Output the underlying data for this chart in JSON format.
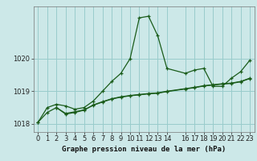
{
  "xlabel": "Graphe pression niveau de la mer (hPa)",
  "bg_color": "#cce8e8",
  "grid_color": "#99cccc",
  "line_color": "#1a5c1a",
  "line1_x": [
    0,
    1,
    2,
    3,
    4,
    5,
    6,
    7,
    8,
    9,
    10,
    11,
    12,
    13,
    14,
    16,
    17,
    18,
    19,
    20,
    21,
    22,
    23
  ],
  "line1_y": [
    1018.05,
    1018.5,
    1018.6,
    1018.55,
    1018.45,
    1018.5,
    1018.7,
    1019.0,
    1019.3,
    1019.55,
    1020.0,
    1021.25,
    1021.3,
    1020.7,
    1019.7,
    1019.55,
    1019.65,
    1019.7,
    1019.15,
    1019.15,
    1019.4,
    1019.6,
    1019.95
  ],
  "line2_x": [
    0,
    1,
    2,
    3,
    4,
    5,
    6,
    7,
    8,
    9,
    10,
    11,
    12,
    13,
    14,
    16,
    17,
    18,
    19,
    20,
    21,
    22,
    23
  ],
  "line2_y": [
    1018.05,
    1018.35,
    1018.5,
    1018.3,
    1018.35,
    1018.42,
    1018.58,
    1018.68,
    1018.77,
    1018.83,
    1018.87,
    1018.9,
    1018.93,
    1018.95,
    1019.0,
    1019.08,
    1019.12,
    1019.17,
    1019.2,
    1019.23,
    1019.25,
    1019.3,
    1019.4
  ],
  "line3_x": [
    2,
    3,
    4,
    5,
    6,
    7,
    8,
    9,
    10,
    11,
    12,
    13,
    14,
    16,
    17,
    18,
    19,
    20,
    21,
    22,
    23
  ],
  "line3_y": [
    1018.5,
    1018.32,
    1018.37,
    1018.43,
    1018.57,
    1018.67,
    1018.76,
    1018.82,
    1018.86,
    1018.89,
    1018.92,
    1018.94,
    1018.99,
    1019.07,
    1019.11,
    1019.16,
    1019.19,
    1019.22,
    1019.24,
    1019.29,
    1019.39
  ],
  "ylim": [
    1017.75,
    1021.6
  ],
  "yticks": [
    1018,
    1019,
    1020
  ],
  "xticks": [
    0,
    1,
    2,
    3,
    4,
    5,
    6,
    7,
    8,
    9,
    10,
    11,
    12,
    13,
    14,
    16,
    17,
    18,
    19,
    20,
    21,
    22,
    23
  ],
  "xlabel_fontsize": 6.5,
  "tick_fontsize": 6.0
}
